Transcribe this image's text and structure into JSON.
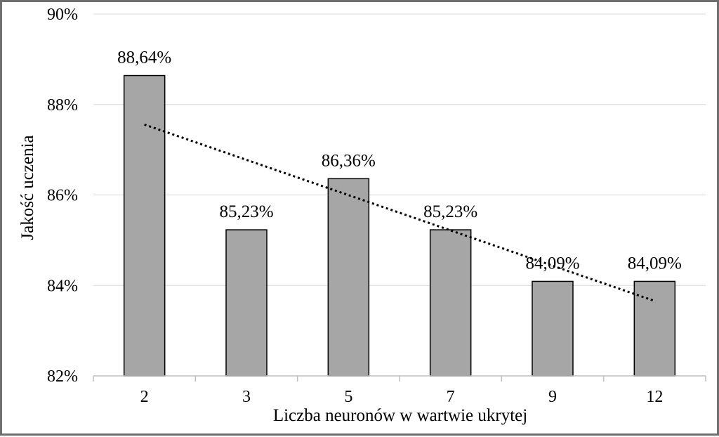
{
  "chart_data": {
    "type": "bar",
    "categories": [
      "2",
      "3",
      "5",
      "7",
      "9",
      "12"
    ],
    "values": [
      88.64,
      85.23,
      86.36,
      85.23,
      84.09,
      84.09
    ],
    "data_labels": [
      "88,64%",
      "85,23%",
      "86,36%",
      "85,23%",
      "84,09%",
      "84,09%"
    ],
    "ylim": [
      82,
      90
    ],
    "yticks": [
      82,
      84,
      86,
      88,
      90
    ],
    "ytick_labels": [
      "82%",
      "84%",
      "86%",
      "88%",
      "90%"
    ],
    "xlabel": "Liczba neuronów w wartwie ukrytej",
    "ylabel": "Jakość uczenia",
    "grid": "horizontal",
    "bar_color": "#a6a6a6",
    "trendline": {
      "type": "linear",
      "style": "dotted",
      "color": "#000000"
    }
  }
}
